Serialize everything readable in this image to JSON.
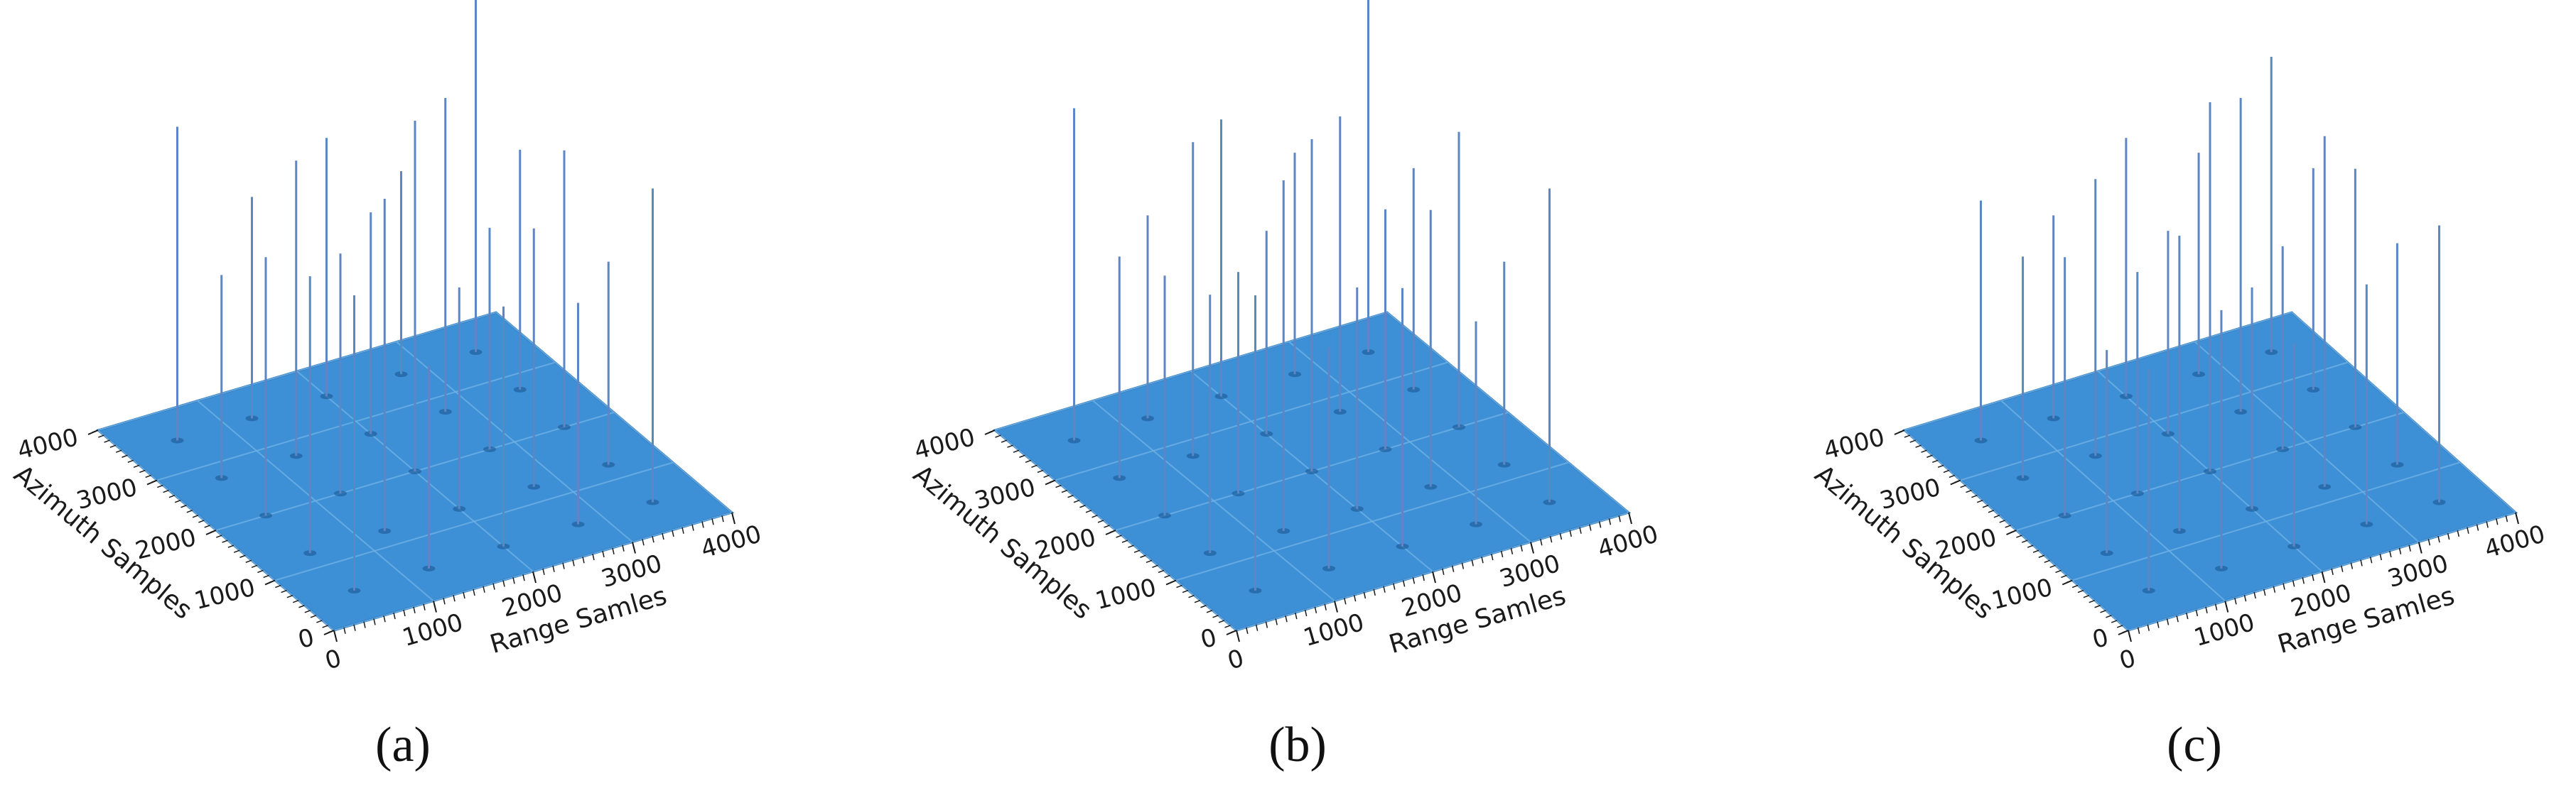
{
  "colors": {
    "surface": "#3d8fd6",
    "surface_edge": "#2a73b8",
    "grid_line": "#6fb2e6",
    "spike": "#5d86c4",
    "text": "#1a1a1a"
  },
  "chart_data": [
    {
      "type": "surface",
      "caption": "(a)",
      "xlabel": "Range Samles",
      "ylabel": "Azimuth Samples",
      "xlim": [
        0,
        4000
      ],
      "ylim": [
        0,
        4000
      ],
      "xticks": [
        "0",
        "1000",
        "2000",
        "3000",
        "4000"
      ],
      "yticks": [
        "0",
        "1000",
        "2000",
        "3000",
        "4000"
      ],
      "grid": true,
      "point_targets": {
        "range_positions": [
          500,
          1250,
          2000,
          2750,
          3500
        ],
        "azimuth_positions": [
          500,
          1250,
          2000,
          2750,
          3500
        ],
        "relative_peak": [
          [
            0.8,
            0.55,
            0.65,
            0.6,
            0.85
          ],
          [
            0.75,
            0.9,
            0.6,
            0.7,
            0.55
          ],
          [
            0.7,
            0.65,
            0.95,
            0.6,
            0.75
          ],
          [
            0.55,
            0.8,
            0.6,
            0.85,
            0.65
          ],
          [
            0.85,
            0.6,
            0.7,
            0.55,
            1.0
          ]
        ]
      }
    },
    {
      "type": "surface",
      "caption": "(b)",
      "xlabel": "Range Samles",
      "ylabel": "Azimuth Samples",
      "xlim": [
        0,
        4000
      ],
      "ylim": [
        0,
        4000
      ],
      "xticks": [
        "0",
        "1000",
        "2000",
        "3000",
        "4000"
      ],
      "yticks": [
        "0",
        "1000",
        "2000",
        "3000",
        "4000"
      ],
      "grid": true,
      "point_targets": {
        "range_positions": [
          500,
          1250,
          2000,
          2750,
          3500
        ],
        "azimuth_positions": [
          500,
          1250,
          2000,
          2750,
          3500
        ],
        "relative_peak": [
          [
            0.8,
            0.6,
            0.7,
            0.55,
            0.85
          ],
          [
            0.7,
            0.95,
            0.6,
            0.75,
            0.55
          ],
          [
            0.65,
            0.6,
            0.9,
            0.65,
            0.8
          ],
          [
            0.6,
            0.85,
            0.55,
            0.8,
            0.6
          ],
          [
            0.9,
            0.55,
            0.75,
            0.6,
            1.0
          ]
        ]
      }
    },
    {
      "type": "surface",
      "caption": "(c)",
      "xlabel": "Range Samles",
      "ylabel": "Azimuth Samples",
      "xlim": [
        0,
        4000
      ],
      "ylim": [
        0,
        4000
      ],
      "xticks": [
        "0",
        "1000",
        "2000",
        "3000",
        "4000"
      ],
      "yticks": [
        "0",
        "1000",
        "2000",
        "3000",
        "4000"
      ],
      "grid": true,
      "point_targets": {
        "range_positions": [
          500,
          1250,
          2000,
          2750,
          3500
        ],
        "azimuth_positions": [
          500,
          1250,
          2000,
          2750,
          3500
        ],
        "relative_peak": [
          [
            0.6,
            0.7,
            0.55,
            0.65,
            0.75
          ],
          [
            0.55,
            0.8,
            0.6,
            0.95,
            0.6
          ],
          [
            0.7,
            0.6,
            1.0,
            0.55,
            0.7
          ],
          [
            0.6,
            0.75,
            0.55,
            0.85,
            0.6
          ],
          [
            0.65,
            0.55,
            0.7,
            0.6,
            0.8
          ]
        ]
      }
    }
  ]
}
